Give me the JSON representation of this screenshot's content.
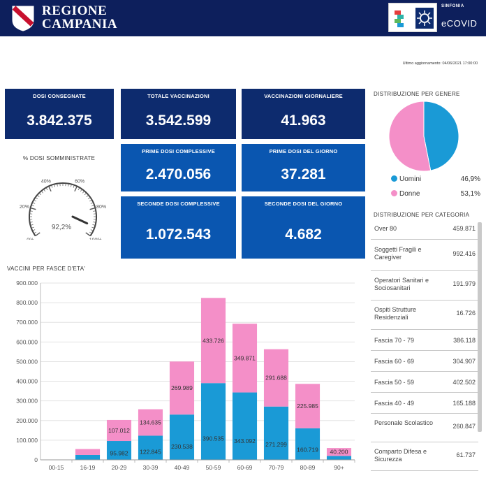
{
  "header": {
    "brand_line1": "REGIONE",
    "brand_line2": "CAMPANIA",
    "ecovid_small": "SINFONIA",
    "ecovid_main": "eCOVID"
  },
  "updated": "Ultimo aggiornamento: 04/06/2021 17:00:00",
  "kpis": {
    "dosi_consegnate": {
      "label": "DOSI CONSEGNATE",
      "value": "3.842.375"
    },
    "totale_vaccinazioni": {
      "label": "TOTALE VACCINAZIONI",
      "value": "3.542.599"
    },
    "vaccinazioni_giornaliere": {
      "label": "VACCINAZIONI GIORNALIERE",
      "value": "41.963"
    },
    "prime_dosi_complessive": {
      "label": "PRIME DOSI COMPLESSIVE",
      "value": "2.470.056"
    },
    "prime_dosi_giorno": {
      "label": "PRIME DOSI DEL GIORNO",
      "value": "37.281"
    },
    "seconde_dosi_complessive": {
      "label": "SECONDE DOSI COMPLESSIVE",
      "value": "1.072.543"
    },
    "seconde_dosi_giorno": {
      "label": "SECONDE DOSI DEL GIORNO",
      "value": "4.682"
    }
  },
  "gauge": {
    "title": "% DOSI SOMMINISTRATE",
    "value_label": "92,2%",
    "value": 92.2,
    "ticks": [
      "0%",
      "20%",
      "40%",
      "60%",
      "80%",
      "100%"
    ]
  },
  "gender": {
    "title": "DISTRIBUZIONE PER GENERE",
    "items": [
      {
        "label": "Uomini",
        "pct_label": "46,9%",
        "value": 46.9,
        "color": "#1a9ad6"
      },
      {
        "label": "Donne",
        "pct_label": "53,1%",
        "value": 53.1,
        "color": "#f48fc8"
      }
    ]
  },
  "categories": {
    "title": "DISTRIBUZIONE PER CATEGORIA",
    "items": [
      {
        "name": "Over 80",
        "value": "459.871"
      },
      {
        "name": "Soggetti Fragili e Caregiver",
        "value": "992.416"
      },
      {
        "name": "Operatori Sanitari e Sociosanitari",
        "value": "191.979"
      },
      {
        "name": "Ospiti Strutture Residenziali",
        "value": "16.726"
      },
      {
        "name": "Fascia 70 - 79",
        "value": "386.118"
      },
      {
        "name": "Fascia 60 - 69",
        "value": "304.907"
      },
      {
        "name": "Fascia 50 - 59",
        "value": "402.502"
      },
      {
        "name": "Fascia 40 - 49",
        "value": "165.188"
      },
      {
        "name": "Personale Scolastico",
        "value": "260.847"
      },
      {
        "name": "Comparto Difesa e Sicurezza",
        "value": "61.737"
      }
    ]
  },
  "chart_data": {
    "type": "bar",
    "title": "VACCINI PER FASCE D'ETA'",
    "stacked": true,
    "categories": [
      "00-15",
      "16-19",
      "20-29",
      "30-39",
      "40-49",
      "50-59",
      "60-69",
      "70-79",
      "80-89",
      "90+"
    ],
    "series": [
      {
        "values": [
          0,
          25000,
          95982,
          122845,
          230538,
          390535,
          343092,
          271299,
          160719,
          20000
        ],
        "labels": [
          "",
          "",
          "95.982",
          "122.845",
          "230.538",
          "390.535",
          "343.092",
          "271.299",
          "160.719",
          ""
        ],
        "color": "#1a9ad6"
      },
      {
        "values": [
          0,
          30000,
          107012,
          134635,
          269989,
          433726,
          349871,
          291688,
          225985,
          40200
        ],
        "labels": [
          "",
          "",
          "107.012",
          "134.635",
          "269.989",
          "433.726",
          "349.871",
          "291.688",
          "225.985",
          "40.200"
        ],
        "color": "#f48fc8"
      }
    ],
    "ylim": [
      0,
      900000
    ],
    "yticks": [
      0,
      100000,
      200000,
      300000,
      400000,
      500000,
      600000,
      700000,
      800000,
      900000
    ],
    "ytick_labels": [
      "0",
      "100.000",
      "200.000",
      "300.000",
      "400.000",
      "500.000",
      "600.000",
      "700.000",
      "800.000",
      "900.000"
    ],
    "grid": true,
    "xlabel": "",
    "ylabel": ""
  }
}
